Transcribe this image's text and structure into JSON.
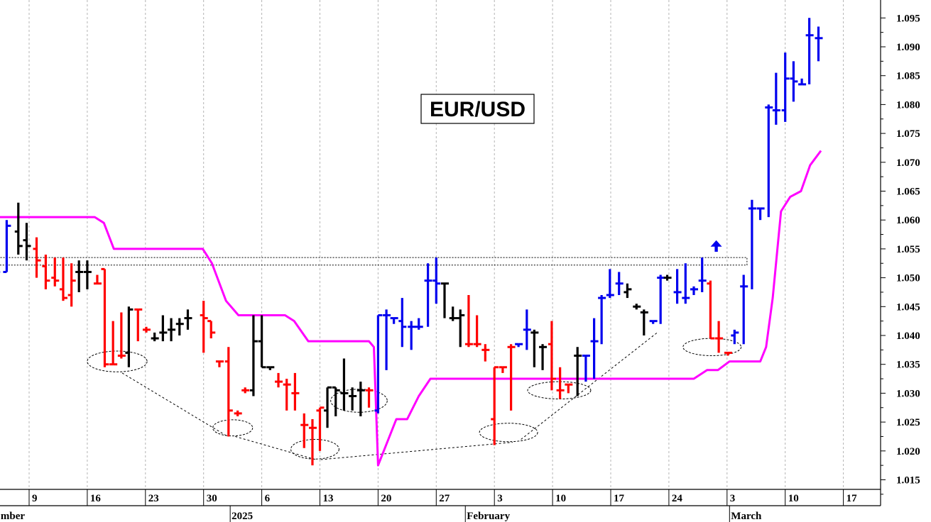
{
  "chart_data": {
    "type": "bar",
    "subtype": "ohlc-daily",
    "title": "EUR/USD",
    "ylim": [
      1.013,
      1.099
    ],
    "y_ticks": [
      "1.015",
      "1.020",
      "1.025",
      "1.030",
      "1.035",
      "1.040",
      "1.045",
      "1.050",
      "1.055",
      "1.060",
      "1.065",
      "1.070",
      "1.075",
      "1.080",
      "1.085",
      "1.090",
      "1.095"
    ],
    "x_ticks": [
      {
        "day": 0,
        "label": "9"
      },
      {
        "day": 7,
        "label": "16"
      },
      {
        "day": 14,
        "label": "23"
      },
      {
        "day": 21,
        "label": "30"
      },
      {
        "day": 28,
        "label": "6"
      },
      {
        "day": 35,
        "label": "13"
      },
      {
        "day": 42,
        "label": "20"
      },
      {
        "day": 49,
        "label": "27"
      },
      {
        "day": 56,
        "label": "3"
      },
      {
        "day": 63,
        "label": "10"
      },
      {
        "day": 70,
        "label": "17"
      },
      {
        "day": 77,
        "label": "24"
      },
      {
        "day": 84,
        "label": "3"
      },
      {
        "day": 91,
        "label": "10"
      },
      {
        "day": 98,
        "label": "17"
      }
    ],
    "period_labels": [
      {
        "day": -3.6,
        "label": "mber"
      },
      {
        "day": 24.2,
        "label": "2025"
      },
      {
        "day": 52.5,
        "label": "February"
      },
      {
        "day": 84.3,
        "label": "March"
      }
    ],
    "grid": true,
    "colors": {
      "down": "#ff0000",
      "neutral": "#000000",
      "up": "#0000ee",
      "stop": "#ff00ff",
      "annotation": "#000000"
    },
    "bars": [
      {
        "d": -4,
        "o": 1.052,
        "h": 1.052,
        "l": 1.05,
        "c": 1.051,
        "k": "up"
      },
      {
        "d": -2.7,
        "o": 1.051,
        "h": 1.06,
        "l": 1.051,
        "c": 1.059,
        "k": "up"
      },
      {
        "d": -1.3,
        "o": 1.058,
        "h": 1.063,
        "l": 1.054,
        "c": 1.0555,
        "k": "neutral"
      },
      {
        "d": -0.3,
        "o": 1.0565,
        "h": 1.0595,
        "l": 1.053,
        "c": 1.0555,
        "k": "neutral"
      },
      {
        "d": 0.9,
        "o": 1.055,
        "h": 1.057,
        "l": 1.05,
        "c": 1.053,
        "k": "down"
      },
      {
        "d": 2.0,
        "o": 1.052,
        "h": 1.054,
        "l": 1.048,
        "c": 1.0495,
        "k": "down"
      },
      {
        "d": 3.1,
        "o": 1.05,
        "h": 1.0535,
        "l": 1.0485,
        "c": 1.0495,
        "k": "down"
      },
      {
        "d": 4.1,
        "o": 1.048,
        "h": 1.0535,
        "l": 1.046,
        "c": 1.0465,
        "k": "down"
      },
      {
        "d": 5.1,
        "o": 1.047,
        "h": 1.0525,
        "l": 1.045,
        "c": 1.0495,
        "k": "down"
      },
      {
        "d": 6.0,
        "o": 1.051,
        "h": 1.053,
        "l": 1.0475,
        "c": 1.051,
        "k": "neutral"
      },
      {
        "d": 7.0,
        "o": 1.051,
        "h": 1.053,
        "l": 1.048,
        "c": 1.051,
        "k": "neutral"
      },
      {
        "d": 8.2,
        "o": 1.049,
        "h": 1.0505,
        "l": 1.049,
        "c": 1.049,
        "k": "down"
      },
      {
        "d": 9.1,
        "o": 1.0515,
        "h": 1.0515,
        "l": 1.0345,
        "c": 1.035,
        "k": "down"
      },
      {
        "d": 10.1,
        "o": 1.035,
        "h": 1.0425,
        "l": 1.035,
        "c": 1.035,
        "k": "down"
      },
      {
        "d": 11.1,
        "o": 1.0365,
        "h": 1.044,
        "l": 1.036,
        "c": 1.0365,
        "k": "down"
      },
      {
        "d": 12.0,
        "o": 1.037,
        "h": 1.045,
        "l": 1.0345,
        "c": 1.0445,
        "k": "neutral"
      },
      {
        "d": 13.1,
        "o": 1.0445,
        "h": 1.0445,
        "l": 1.039,
        "c": 1.0445,
        "k": "down"
      },
      {
        "d": 14.1,
        "o": 1.041,
        "h": 1.0415,
        "l": 1.0405,
        "c": 1.041,
        "k": "down"
      },
      {
        "d": 15.1,
        "o": 1.0395,
        "h": 1.0405,
        "l": 1.039,
        "c": 1.0395,
        "k": "neutral"
      },
      {
        "d": 16.1,
        "o": 1.0405,
        "h": 1.0435,
        "l": 1.039,
        "c": 1.0405,
        "k": "neutral"
      },
      {
        "d": 17.1,
        "o": 1.041,
        "h": 1.043,
        "l": 1.039,
        "c": 1.041,
        "k": "neutral"
      },
      {
        "d": 18.1,
        "o": 1.042,
        "h": 1.043,
        "l": 1.04,
        "c": 1.042,
        "k": "neutral"
      },
      {
        "d": 19.1,
        "o": 1.043,
        "h": 1.0445,
        "l": 1.041,
        "c": 1.043,
        "k": "neutral"
      },
      {
        "d": 21.0,
        "o": 1.0435,
        "h": 1.046,
        "l": 1.037,
        "c": 1.043,
        "k": "down"
      },
      {
        "d": 21.9,
        "o": 1.0425,
        "h": 1.0425,
        "l": 1.0395,
        "c": 1.0405,
        "k": "down"
      },
      {
        "d": 22.9,
        "o": 1.0355,
        "h": 1.0355,
        "l": 1.0345,
        "c": 1.0355,
        "k": "down"
      },
      {
        "d": 24.0,
        "o": 1.0355,
        "h": 1.038,
        "l": 1.0225,
        "c": 1.027,
        "k": "down"
      },
      {
        "d": 25.1,
        "o": 1.0265,
        "h": 1.027,
        "l": 1.026,
        "c": 1.0265,
        "k": "down"
      },
      {
        "d": 26.0,
        "o": 1.0305,
        "h": 1.031,
        "l": 1.03,
        "c": 1.0305,
        "k": "down"
      },
      {
        "d": 27.0,
        "o": 1.0305,
        "h": 1.0435,
        "l": 1.0295,
        "c": 1.039,
        "k": "neutral"
      },
      {
        "d": 28.0,
        "o": 1.039,
        "h": 1.0435,
        "l": 1.0345,
        "c": 1.0345,
        "k": "neutral"
      },
      {
        "d": 29.0,
        "o": 1.0345,
        "h": 1.0345,
        "l": 1.034,
        "c": 1.0345,
        "k": "neutral"
      },
      {
        "d": 30.0,
        "o": 1.032,
        "h": 1.0335,
        "l": 1.031,
        "c": 1.032,
        "k": "down"
      },
      {
        "d": 31.0,
        "o": 1.0315,
        "h": 1.0325,
        "l": 1.027,
        "c": 1.0315,
        "k": "down"
      },
      {
        "d": 32.0,
        "o": 1.03,
        "h": 1.0335,
        "l": 1.027,
        "c": 1.03,
        "k": "down"
      },
      {
        "d": 33.1,
        "o": 1.0245,
        "h": 1.0265,
        "l": 1.0205,
        "c": 1.0245,
        "k": "down"
      },
      {
        "d": 34.1,
        "o": 1.024,
        "h": 1.0255,
        "l": 1.0175,
        "c": 1.024,
        "k": "down"
      },
      {
        "d": 35.0,
        "o": 1.027,
        "h": 1.0275,
        "l": 1.02,
        "c": 1.0275,
        "k": "down"
      },
      {
        "d": 35.9,
        "o": 1.027,
        "h": 1.031,
        "l": 1.024,
        "c": 1.031,
        "k": "neutral"
      },
      {
        "d": 36.9,
        "o": 1.031,
        "h": 1.031,
        "l": 1.026,
        "c": 1.0305,
        "k": "neutral"
      },
      {
        "d": 37.9,
        "o": 1.03,
        "h": 1.036,
        "l": 1.027,
        "c": 1.03,
        "k": "neutral"
      },
      {
        "d": 38.9,
        "o": 1.0295,
        "h": 1.031,
        "l": 1.027,
        "c": 1.0295,
        "k": "neutral"
      },
      {
        "d": 39.9,
        "o": 1.0305,
        "h": 1.032,
        "l": 1.026,
        "c": 1.0305,
        "k": "neutral"
      },
      {
        "d": 40.9,
        "o": 1.0305,
        "h": 1.031,
        "l": 1.0275,
        "c": 1.0305,
        "k": "down"
      },
      {
        "d": 42.0,
        "o": 1.027,
        "h": 1.0435,
        "l": 1.0265,
        "c": 1.0435,
        "k": "up"
      },
      {
        "d": 43.0,
        "o": 1.0435,
        "h": 1.0445,
        "l": 1.034,
        "c": 1.0435,
        "k": "up"
      },
      {
        "d": 43.9,
        "o": 1.043,
        "h": 1.043,
        "l": 1.042,
        "c": 1.043,
        "k": "up"
      },
      {
        "d": 44.9,
        "o": 1.0425,
        "h": 1.0465,
        "l": 1.038,
        "c": 1.0415,
        "k": "up"
      },
      {
        "d": 46.0,
        "o": 1.0415,
        "h": 1.0425,
        "l": 1.0375,
        "c": 1.0415,
        "k": "up"
      },
      {
        "d": 46.9,
        "o": 1.0415,
        "h": 1.043,
        "l": 1.041,
        "c": 1.0415,
        "k": "up"
      },
      {
        "d": 48.0,
        "o": 1.0495,
        "h": 1.0525,
        "l": 1.0415,
        "c": 1.0495,
        "k": "up"
      },
      {
        "d": 49.0,
        "o": 1.0495,
        "h": 1.0535,
        "l": 1.0455,
        "c": 1.049,
        "k": "up"
      },
      {
        "d": 50.0,
        "o": 1.049,
        "h": 1.049,
        "l": 1.043,
        "c": 1.049,
        "k": "neutral"
      },
      {
        "d": 51.0,
        "o": 1.043,
        "h": 1.045,
        "l": 1.0425,
        "c": 1.043,
        "k": "neutral"
      },
      {
        "d": 51.9,
        "o": 1.043,
        "h": 1.0445,
        "l": 1.038,
        "c": 1.0435,
        "k": "neutral"
      },
      {
        "d": 52.9,
        "o": 1.0385,
        "h": 1.047,
        "l": 1.038,
        "c": 1.0385,
        "k": "down"
      },
      {
        "d": 53.9,
        "o": 1.0385,
        "h": 1.0435,
        "l": 1.038,
        "c": 1.0385,
        "k": "down"
      },
      {
        "d": 54.9,
        "o": 1.0375,
        "h": 1.0385,
        "l": 1.0355,
        "c": 1.0375,
        "k": "down"
      },
      {
        "d": 56.0,
        "o": 1.0255,
        "h": 1.0345,
        "l": 1.021,
        "c": 1.0345,
        "k": "down"
      },
      {
        "d": 57.0,
        "o": 1.0345,
        "h": 1.0345,
        "l": 1.0335,
        "c": 1.0345,
        "k": "down"
      },
      {
        "d": 58.0,
        "o": 1.038,
        "h": 1.0385,
        "l": 1.027,
        "c": 1.038,
        "k": "down"
      },
      {
        "d": 58.9,
        "o": 1.0385,
        "h": 1.0385,
        "l": 1.038,
        "c": 1.0385,
        "k": "up"
      },
      {
        "d": 59.9,
        "o": 1.041,
        "h": 1.0445,
        "l": 1.0375,
        "c": 1.041,
        "k": "up"
      },
      {
        "d": 60.8,
        "o": 1.0405,
        "h": 1.041,
        "l": 1.0345,
        "c": 1.0405,
        "k": "neutral"
      },
      {
        "d": 61.8,
        "o": 1.038,
        "h": 1.0385,
        "l": 1.034,
        "c": 1.038,
        "k": "neutral"
      },
      {
        "d": 62.9,
        "o": 1.0385,
        "h": 1.0425,
        "l": 1.0305,
        "c": 1.0325,
        "k": "down"
      },
      {
        "d": 63.9,
        "o": 1.0305,
        "h": 1.0345,
        "l": 1.029,
        "c": 1.0305,
        "k": "down"
      },
      {
        "d": 64.9,
        "o": 1.0315,
        "h": 1.0315,
        "l": 1.03,
        "c": 1.0315,
        "k": "down"
      },
      {
        "d": 66.0,
        "o": 1.0365,
        "h": 1.038,
        "l": 1.0295,
        "c": 1.0365,
        "k": "neutral"
      },
      {
        "d": 67.0,
        "o": 1.0365,
        "h": 1.0365,
        "l": 1.032,
        "c": 1.0365,
        "k": "up"
      },
      {
        "d": 68.0,
        "o": 1.039,
        "h": 1.043,
        "l": 1.0325,
        "c": 1.039,
        "k": "up"
      },
      {
        "d": 68.9,
        "o": 1.0465,
        "h": 1.047,
        "l": 1.0385,
        "c": 1.0465,
        "k": "up"
      },
      {
        "d": 69.9,
        "o": 1.047,
        "h": 1.0515,
        "l": 1.0465,
        "c": 1.047,
        "k": "up"
      },
      {
        "d": 71.0,
        "o": 1.049,
        "h": 1.051,
        "l": 1.047,
        "c": 1.049,
        "k": "up"
      },
      {
        "d": 72.0,
        "o": 1.0475,
        "h": 1.049,
        "l": 1.0465,
        "c": 1.048,
        "k": "neutral"
      },
      {
        "d": 73.1,
        "o": 1.045,
        "h": 1.0455,
        "l": 1.0445,
        "c": 1.045,
        "k": "neutral"
      },
      {
        "d": 74.0,
        "o": 1.044,
        "h": 1.0445,
        "l": 1.04,
        "c": 1.044,
        "k": "neutral"
      },
      {
        "d": 75.1,
        "o": 1.0425,
        "h": 1.0425,
        "l": 1.042,
        "c": 1.0425,
        "k": "up"
      },
      {
        "d": 76.0,
        "o": 1.05,
        "h": 1.0505,
        "l": 1.042,
        "c": 1.05,
        "k": "up"
      },
      {
        "d": 76.8,
        "o": 1.05,
        "h": 1.0505,
        "l": 1.0495,
        "c": 1.05,
        "k": "neutral"
      },
      {
        "d": 78.0,
        "o": 1.0475,
        "h": 1.0515,
        "l": 1.0455,
        "c": 1.0475,
        "k": "up"
      },
      {
        "d": 79.0,
        "o": 1.0465,
        "h": 1.0525,
        "l": 1.0455,
        "c": 1.0465,
        "k": "up"
      },
      {
        "d": 80.0,
        "o": 1.048,
        "h": 1.0485,
        "l": 1.047,
        "c": 1.048,
        "k": "up"
      },
      {
        "d": 81.0,
        "o": 1.0495,
        "h": 1.0535,
        "l": 1.0475,
        "c": 1.0495,
        "k": "up"
      },
      {
        "d": 82.0,
        "o": 1.049,
        "h": 1.0495,
        "l": 1.0395,
        "c": 1.0395,
        "k": "down"
      },
      {
        "d": 83.0,
        "o": 1.0395,
        "h": 1.0425,
        "l": 1.037,
        "c": 1.0395,
        "k": "down"
      },
      {
        "d": 84.1,
        "o": 1.037,
        "h": 1.037,
        "l": 1.0365,
        "c": 1.037,
        "k": "down"
      },
      {
        "d": 84.9,
        "o": 1.04,
        "h": 1.041,
        "l": 1.0385,
        "c": 1.0405,
        "k": "up"
      },
      {
        "d": 86.0,
        "o": 1.0485,
        "h": 1.0505,
        "l": 1.0385,
        "c": 1.0485,
        "k": "up"
      },
      {
        "d": 87.0,
        "o": 1.062,
        "h": 1.0635,
        "l": 1.048,
        "c": 1.062,
        "k": "up"
      },
      {
        "d": 88.0,
        "o": 1.062,
        "h": 1.062,
        "l": 1.06,
        "c": 1.062,
        "k": "up"
      },
      {
        "d": 89.0,
        "o": 1.0795,
        "h": 1.08,
        "l": 1.0605,
        "c": 1.0795,
        "k": "up"
      },
      {
        "d": 89.9,
        "o": 1.079,
        "h": 1.0855,
        "l": 1.0765,
        "c": 1.079,
        "k": "up"
      },
      {
        "d": 91.0,
        "o": 1.079,
        "h": 1.089,
        "l": 1.077,
        "c": 1.0845,
        "k": "up"
      },
      {
        "d": 92.0,
        "o": 1.0845,
        "h": 1.0875,
        "l": 1.0805,
        "c": 1.084,
        "k": "up"
      },
      {
        "d": 93.0,
        "o": 1.0835,
        "h": 1.0845,
        "l": 1.0835,
        "c": 1.0835,
        "k": "up"
      },
      {
        "d": 93.9,
        "o": 1.092,
        "h": 1.095,
        "l": 1.0835,
        "c": 1.092,
        "k": "up"
      },
      {
        "d": 95.0,
        "o": 1.0915,
        "h": 1.0935,
        "l": 1.0875,
        "c": 1.0915,
        "k": "up"
      }
    ],
    "stop_line": [
      [
        -4.6,
        1.0605
      ],
      [
        6.0,
        1.0605
      ],
      [
        7.9,
        1.0605
      ],
      [
        9.0,
        1.0595
      ],
      [
        10.2,
        1.055
      ],
      [
        11.0,
        1.055
      ],
      [
        20.9,
        1.055
      ],
      [
        22.0,
        1.0525
      ],
      [
        23.7,
        1.046
      ],
      [
        25.2,
        1.0435
      ],
      [
        30.8,
        1.0435
      ],
      [
        31.9,
        1.0425
      ],
      [
        33.6,
        1.039
      ],
      [
        34.7,
        1.039
      ],
      [
        40.9,
        1.039
      ],
      [
        41.5,
        1.038
      ],
      [
        42.0,
        1.0175
      ],
      [
        44.2,
        1.0255
      ],
      [
        45.5,
        1.0255
      ],
      [
        46.9,
        1.0295
      ],
      [
        48.3,
        1.0325
      ],
      [
        65.0,
        1.0325
      ],
      [
        80.0,
        1.0325
      ],
      [
        81.6,
        1.034
      ],
      [
        82.9,
        1.034
      ],
      [
        84.3,
        1.0355
      ],
      [
        88.0,
        1.0355
      ],
      [
        88.7,
        1.038
      ],
      [
        89.5,
        1.0465
      ],
      [
        90.5,
        1.0615
      ],
      [
        91.6,
        1.064
      ],
      [
        92.9,
        1.065
      ],
      [
        94.0,
        1.0695
      ],
      [
        95.3,
        1.072
      ]
    ],
    "resistance_zone": {
      "x1": -3.8,
      "x2": 86.4,
      "y_top": 1.0535,
      "y_bottom": 1.0522
    },
    "ellipses": [
      {
        "cx": 10.6,
        "cy": 1.0355,
        "rx": 3.6,
        "ry": 0.0018
      },
      {
        "cx": 24.5,
        "cy": 1.024,
        "rx": 2.4,
        "ry": 0.0014
      },
      {
        "cx": 34.4,
        "cy": 1.0203,
        "rx": 2.9,
        "ry": 0.0017
      },
      {
        "cx": 39.7,
        "cy": 1.0287,
        "rx": 3.4,
        "ry": 0.002
      },
      {
        "cx": 57.7,
        "cy": 1.0232,
        "rx": 3.5,
        "ry": 0.0016
      },
      {
        "cx": 63.8,
        "cy": 1.0305,
        "rx": 3.8,
        "ry": 0.0015
      },
      {
        "cx": 82.2,
        "cy": 1.038,
        "rx": 3.5,
        "ry": 0.0015
      }
    ],
    "dashed_lines": [
      [
        [
          11.2,
          1.0335
        ],
        [
          23.9,
          1.0225
        ]
      ],
      [
        [
          24.8,
          1.0225
        ],
        [
          34.5,
          1.0185
        ]
      ],
      [
        [
          35.1,
          1.0185
        ],
        [
          58.2,
          1.0215
        ]
      ],
      [
        [
          59.2,
          1.022
        ],
        [
          75.6,
          1.0405
        ]
      ]
    ],
    "arrow": {
      "d": 82.7,
      "y_base": 1.0545,
      "y_tip": 1.0565
    }
  }
}
